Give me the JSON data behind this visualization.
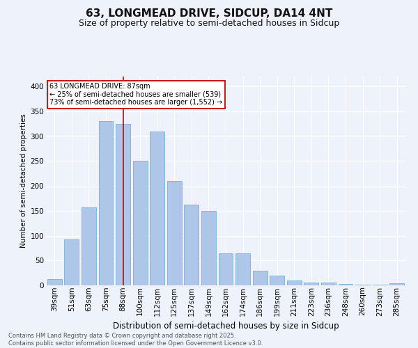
{
  "title1": "63, LONGMEAD DRIVE, SIDCUP, DA14 4NT",
  "title2": "Size of property relative to semi-detached houses in Sidcup",
  "xlabel": "Distribution of semi-detached houses by size in Sidcup",
  "ylabel": "Number of semi-detached properties",
  "categories": [
    "39sqm",
    "51sqm",
    "63sqm",
    "75sqm",
    "88sqm",
    "100sqm",
    "112sqm",
    "125sqm",
    "137sqm",
    "149sqm",
    "162sqm",
    "174sqm",
    "186sqm",
    "199sqm",
    "211sqm",
    "223sqm",
    "236sqm",
    "248sqm",
    "260sqm",
    "273sqm",
    "285sqm"
  ],
  "values": [
    13,
    92,
    157,
    330,
    325,
    250,
    310,
    210,
    163,
    150,
    65,
    65,
    30,
    20,
    10,
    5,
    5,
    3,
    2,
    2,
    4
  ],
  "bar_color": "#aec6e8",
  "bar_edge_color": "#7aafd4",
  "highlight_bar_index": 4,
  "red_line_index": 4,
  "annotation_title": "63 LONGMEAD DRIVE: 87sqm",
  "annotation_line1": "← 25% of semi-detached houses are smaller (539)",
  "annotation_line2": "73% of semi-detached houses are larger (1,552) →",
  "ylim": [
    0,
    420
  ],
  "yticks": [
    0,
    50,
    100,
    150,
    200,
    250,
    300,
    350,
    400
  ],
  "footer_line1": "Contains HM Land Registry data © Crown copyright and database right 2025.",
  "footer_line2": "Contains public sector information licensed under the Open Government Licence v3.0.",
  "background_color": "#eef2fb",
  "grid_color": "#ffffff",
  "annotation_box_color": "#ffffff",
  "annotation_box_edge": "#cc0000",
  "red_line_color": "#cc0000",
  "title1_fontsize": 11,
  "title2_fontsize": 9,
  "xlabel_fontsize": 8.5,
  "ylabel_fontsize": 7.5,
  "tick_fontsize": 7.5,
  "footer_fontsize": 6
}
